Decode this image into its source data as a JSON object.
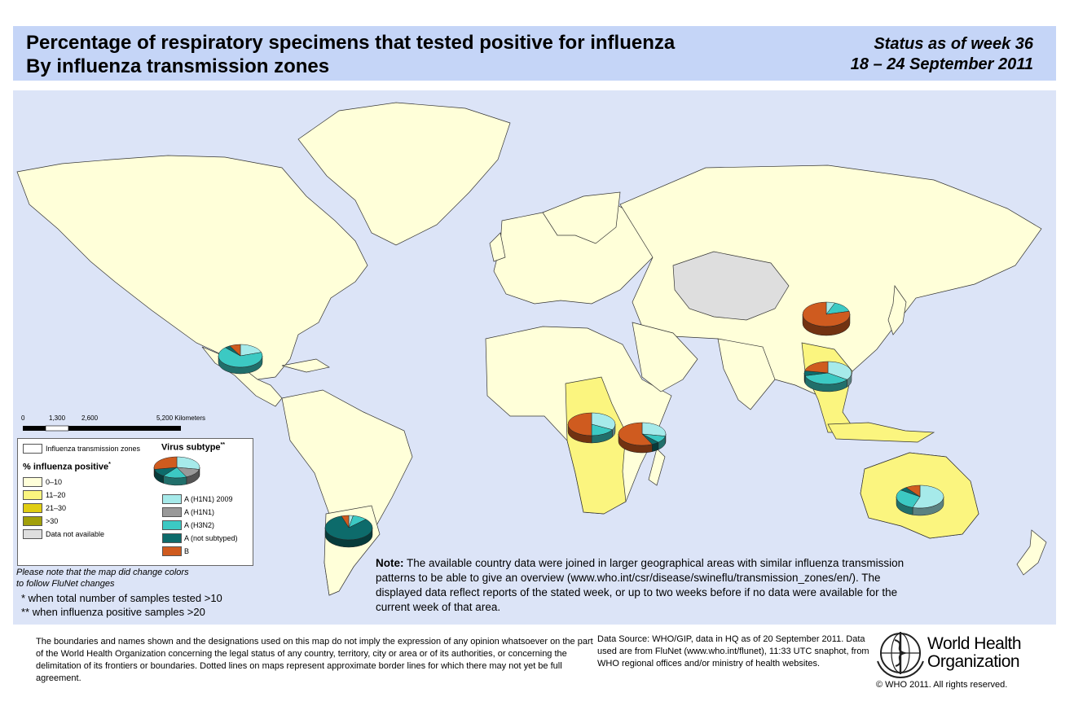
{
  "title": {
    "line1": "Percentage of respiratory specimens that tested positive for influenza",
    "line2": "By influenza transmission zones",
    "status1": "Status as of week 36",
    "status2": "18 – 24 September 2011"
  },
  "scale_bar": {
    "labels": [
      "0",
      "1,300",
      "2,600",
      "5,200 Kilometers"
    ]
  },
  "legend": {
    "zones_label": "Influenza transmission zones",
    "percent_title": "% influenza positive",
    "percent_title_mark": "*",
    "virus_title": "Virus subtype",
    "virus_title_mark": "**",
    "percent_classes": [
      {
        "label": "0–10",
        "color": "#ffffd9"
      },
      {
        "label": "11–20",
        "color": "#fbf57f"
      },
      {
        "label": "21–30",
        "color": "#e0cd12"
      },
      {
        "label": ">30",
        "color": "#a2a00a"
      },
      {
        "label": "Data not available",
        "color": "#dedede"
      }
    ],
    "subtypes": [
      {
        "label": "A (H1N1) 2009",
        "color": "#a6eaea"
      },
      {
        "label": "A (H1N1)",
        "color": "#999999"
      },
      {
        "label": "A (H3N2)",
        "color": "#3cc9c3"
      },
      {
        "label": "A (not subtyped)",
        "color": "#0d6b6b"
      },
      {
        "label": "B",
        "color": "#cf5b1f"
      }
    ]
  },
  "notes": {
    "map_colors": [
      "Please note that the map did change colors",
      "to follow FluNet changes"
    ],
    "footnote1": "*   when total number of samples tested >10",
    "footnote2": "**  when influenza positive samples >20",
    "note_label": "Note:",
    "note_text": "The available country data were joined in larger geographical areas with similar influenza transmission patterns to be able to give an overview (www.who.int/csr/disease/swineflu/transmission_zones/en/). The displayed data reflect reports of the stated week, or up to two weeks before if no data were available for the current week of that area."
  },
  "footer": {
    "disclaimer": "The boundaries and names shown and the designations used on this map do not imply the expression of any opinion whatsoever on the part of the World Health Organization concerning the legal status of any country, territory, city or area or of its authorities, or concerning the delimitation of its frontiers or boundaries.  Dotted lines on maps represent approximate border lines for which there may not yet be full agreement.",
    "source": "Data Source: WHO/GIP, data in HQ as of 20 September 2011. Data used are from FluNet (www.who.int/flunet), 11:33 UTC snaphot, from WHO regional offices and/or ministry of health websites.",
    "org_line1": "World Health",
    "org_line2": "Organization",
    "copyright": "© WHO 2011. All rights reserved."
  },
  "zones": [
    {
      "name": "Central America",
      "pct_class": "0–10",
      "subtypes": {
        "A (H1N1) 2009": 0.2,
        "A (H3N2)": 0.68,
        "A (not subtyped)": 0.04,
        "B": 0.08
      }
    },
    {
      "name": "Temperate South America",
      "pct_class": "0–10",
      "subtypes": {
        "A (H1N1) 2009": 0.03,
        "A (H3N2)": 0.1,
        "A (not subtyped)": 0.82,
        "B": 0.05
      }
    },
    {
      "name": "Middle Africa",
      "pct_class": "11–20",
      "subtypes": {
        "A (H1N1) 2009": 0.33,
        "A (H3N2)": 0.17,
        "B": 0.5
      }
    },
    {
      "name": "Eastern Africa",
      "pct_class": "0–10",
      "subtypes": {
        "A (H1N1) 2009": 0.28,
        "A (H3N2)": 0.1,
        "A (not subtyped)": 0.05,
        "B": 0.57
      }
    },
    {
      "name": "Eastern Asia",
      "pct_class": "0–10",
      "subtypes": {
        "A (H1N1) 2009": 0.06,
        "A (H3N2)": 0.15,
        "B": 0.79
      }
    },
    {
      "name": "South East Asia",
      "pct_class": "11–20",
      "subtypes": {
        "A (H1N1) 2009": 0.35,
        "A (H3N2)": 0.36,
        "A (not subtyped)": 0.07,
        "B": 0.22
      }
    },
    {
      "name": "Oceania Melanesia Polynesia",
      "pct_class": "11–20",
      "subtypes": {
        "A (H1N1) 2009": 0.55,
        "A (H3N2)": 0.3,
        "A (not subtyped)": 0.05,
        "B": 0.1
      }
    },
    {
      "name": "Central Asia",
      "pct_class": "Data not available"
    }
  ],
  "legend_example_pie": {
    "A (H1N1) 2009": 0.28,
    "A (H3N2)": 0.17,
    "A (not subtyped)": 0.12,
    "B": 0.28,
    "A (H1N1)": 0.15
  }
}
